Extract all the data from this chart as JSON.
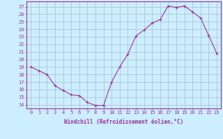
{
  "x": [
    0,
    1,
    2,
    3,
    4,
    5,
    6,
    7,
    8,
    9,
    10,
    11,
    12,
    13,
    14,
    15,
    16,
    17,
    18,
    19,
    20,
    21,
    22,
    23
  ],
  "y": [
    19.0,
    18.5,
    18.0,
    16.5,
    15.9,
    15.3,
    15.2,
    14.3,
    13.9,
    13.9,
    17.0,
    19.0,
    20.7,
    23.1,
    23.9,
    24.8,
    25.3,
    27.1,
    26.9,
    27.1,
    26.3,
    25.5,
    23.2,
    20.8
  ],
  "line_color": "#993399",
  "marker": "+",
  "marker_size": 3,
  "marker_linewidth": 0.8,
  "bg_color": "#cceeff",
  "grid_color": "#aabbcc",
  "xlabel": "Windchill (Refroidissement éolien,°C)",
  "xlabel_color": "#993399",
  "ylabel_ticks": [
    14,
    15,
    16,
    17,
    18,
    19,
    20,
    21,
    22,
    23,
    24,
    25,
    26,
    27
  ],
  "ylim": [
    13.5,
    27.7
  ],
  "xlim": [
    -0.5,
    23.5
  ],
  "xtick_labels": [
    "0",
    "1",
    "2",
    "3",
    "4",
    "5",
    "6",
    "7",
    "8",
    "9",
    "10",
    "11",
    "12",
    "13",
    "14",
    "15",
    "16",
    "17",
    "18",
    "19",
    "20",
    "21",
    "22",
    "23"
  ],
  "tick_color": "#993399",
  "axis_color": "#993399",
  "tick_fontsize": 5,
  "xlabel_fontsize": 5.5
}
